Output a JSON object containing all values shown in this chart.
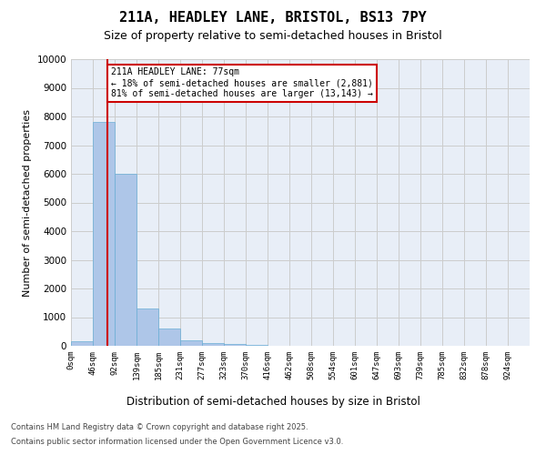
{
  "title1": "211A, HEADLEY LANE, BRISTOL, BS13 7PY",
  "title2": "Size of property relative to semi-detached houses in Bristol",
  "xlabel": "Distribution of semi-detached houses by size in Bristol",
  "ylabel": "Number of semi-detached properties",
  "bin_labels": [
    "0sqm",
    "46sqm",
    "92sqm",
    "139sqm",
    "185sqm",
    "231sqm",
    "277sqm",
    "323sqm",
    "370sqm",
    "416sqm",
    "462sqm",
    "508sqm",
    "554sqm",
    "601sqm",
    "647sqm",
    "693sqm",
    "739sqm",
    "785sqm",
    "832sqm",
    "878sqm",
    "924sqm"
  ],
  "bin_edges": [
    0,
    46,
    92,
    139,
    185,
    231,
    277,
    323,
    370,
    416,
    462,
    508,
    554,
    601,
    647,
    693,
    739,
    785,
    832,
    878,
    924
  ],
  "bar_heights": [
    150,
    7800,
    6000,
    1300,
    600,
    200,
    100,
    50,
    20,
    5,
    2,
    1,
    0,
    0,
    0,
    0,
    0,
    0,
    0,
    0
  ],
  "bar_color": "#aec6e8",
  "bar_edgecolor": "#6aaed6",
  "property_sqm": 77,
  "property_line_color": "#cc0000",
  "annotation_text": "211A HEADLEY LANE: 77sqm\n← 18% of semi-detached houses are smaller (2,881)\n81% of semi-detached houses are larger (13,143) →",
  "annotation_box_edgecolor": "#cc0000",
  "ylim": [
    0,
    10000
  ],
  "yticks": [
    0,
    1000,
    2000,
    3000,
    4000,
    5000,
    6000,
    7000,
    8000,
    9000,
    10000
  ],
  "grid_color": "#cccccc",
  "background_color": "#e8eef7",
  "footer1": "Contains HM Land Registry data © Crown copyright and database right 2025.",
  "footer2": "Contains public sector information licensed under the Open Government Licence v3.0."
}
